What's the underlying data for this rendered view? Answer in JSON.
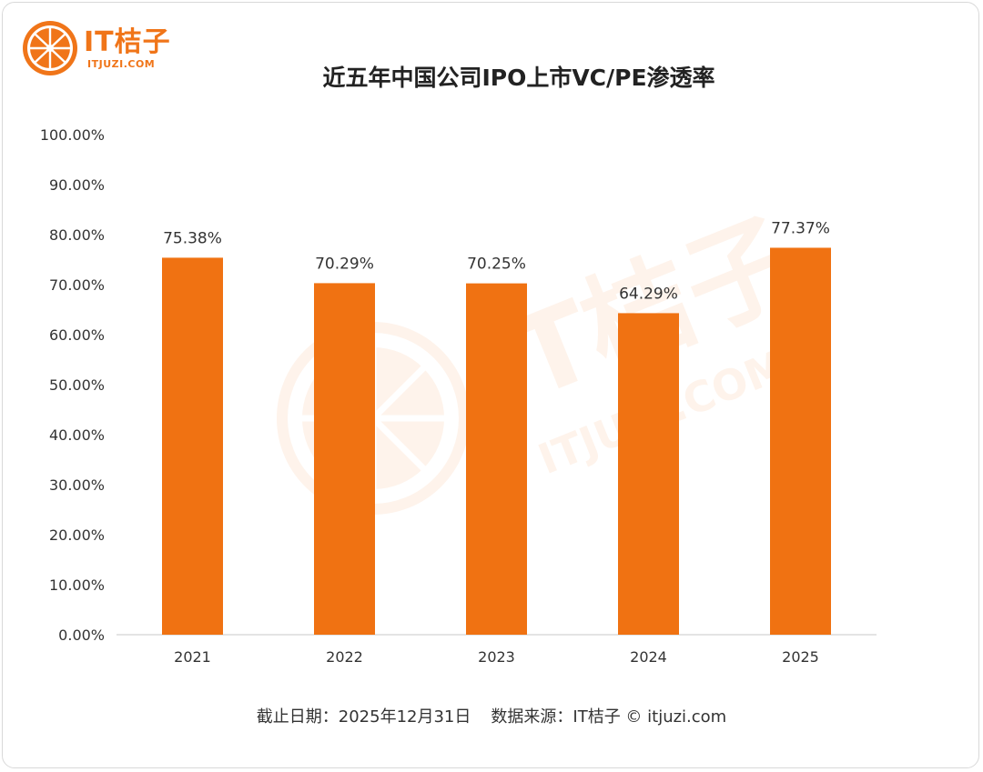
{
  "logo": {
    "name": "IT桔子",
    "url": "ITJUZI.COM"
  },
  "watermark": {
    "name": "IT桔子",
    "url": "ITJUZI.COM"
  },
  "footer": {
    "cutoff": "截止日期：2025年12月31日",
    "source": "数据来源：IT桔子 © itjuzi.com"
  },
  "colors": {
    "bar": "#f07212",
    "brand": "#f07519",
    "axis": "#c8c8c8",
    "text": "#333333"
  },
  "chart_data": {
    "type": "bar",
    "title": "近五年中国公司IPO上市VC/PE渗透率",
    "categories": [
      "2021",
      "2022",
      "2023",
      "2024",
      "2025"
    ],
    "values": [
      75.38,
      70.29,
      70.25,
      64.29,
      77.37
    ],
    "value_labels": [
      "75.38%",
      "70.29%",
      "70.25%",
      "64.29%",
      "77.37%"
    ],
    "y_ticks": [
      "0.00%",
      "10.00%",
      "20.00%",
      "30.00%",
      "40.00%",
      "50.00%",
      "60.00%",
      "70.00%",
      "80.00%",
      "90.00%",
      "100.00%"
    ],
    "ylim": [
      0,
      100
    ],
    "xlabel": "",
    "ylabel": "",
    "grid": false,
    "legend": "none"
  }
}
